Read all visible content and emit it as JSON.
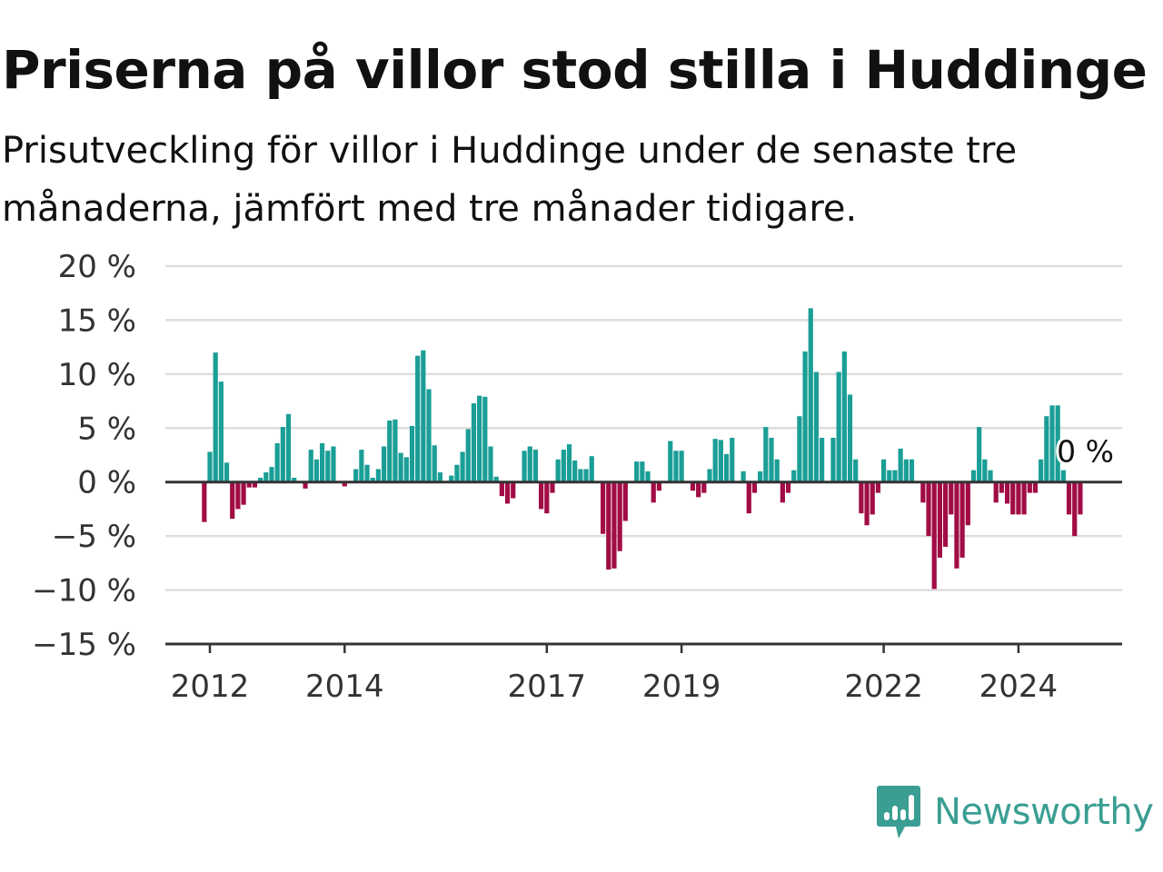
{
  "title": "Priserna på villor stod stilla i Huddinge",
  "subtitle": "Prisutveckling för villor i Huddinge under de senaste tre månaderna, jämfört med tre månader tidigare.",
  "brand": {
    "name": "Newsworthy",
    "icon": "newsworthy-bar-chart-logo-icon",
    "color": "#3a9e92"
  },
  "colors": {
    "positive": "#1a9e96",
    "negative": "#a10c45",
    "grid": "#dddddd",
    "axis": "#333333"
  },
  "chart_data": {
    "type": "bar",
    "title": "Priserna på villor stod stilla i Huddinge",
    "subtitle": "Prisutveckling för villor i Huddinge under de senaste tre månaderna, jämfört med tre månader tidigare.",
    "xlabel": "",
    "ylabel": "",
    "ylim": [
      -15,
      20
    ],
    "yticks": [
      20,
      15,
      10,
      5,
      0,
      -5,
      -10,
      -15
    ],
    "ytick_labels": [
      "20 %",
      "15 %",
      "10 %",
      "5 %",
      "0 %",
      "−5 %",
      "−10 %",
      "−15 %"
    ],
    "xticks": [
      "2012",
      "2014",
      "2017",
      "2019",
      "2022",
      "2024"
    ],
    "x_start": "2011-12",
    "x_end": "2024-10",
    "grid": true,
    "legend": "none",
    "last_value_label": "0 %",
    "series": [
      {
        "x_start": "2011-12",
        "frequency": "monthly",
        "values": [
          -3.7,
          2.8,
          12.0,
          9.3,
          1.8,
          -3.4,
          -2.5,
          -2.1,
          -0.5,
          -0.5,
          0.4,
          0.9,
          1.4,
          3.6,
          5.1,
          6.3,
          0.4,
          0.0,
          -0.6,
          3.0,
          2.1,
          3.6,
          2.9,
          3.3,
          0.0,
          -0.4,
          0.0,
          1.2,
          3.0,
          1.6,
          0.4,
          1.2,
          3.3,
          5.7,
          5.8,
          2.7,
          2.3,
          5.2,
          11.7,
          12.2,
          8.6,
          3.4,
          0.9,
          0.0,
          0.6,
          1.6,
          2.8,
          4.9,
          7.3,
          8.0,
          7.9,
          3.3,
          0.5,
          -1.3,
          -2.0,
          -1.5,
          0.0,
          2.9,
          3.3,
          3.0,
          -2.5,
          -2.9,
          -1.0,
          2.1,
          3.0,
          3.5,
          2.0,
          1.2,
          1.2,
          2.4,
          0.0,
          -4.8,
          -8.1,
          -8.0,
          -6.4,
          -3.6,
          0.0,
          1.9,
          1.9,
          1.0,
          -1.9,
          -0.8,
          0.0,
          3.8,
          2.9,
          2.9,
          0.0,
          -0.8,
          -1.4,
          -1.0,
          1.2,
          4.0,
          3.9,
          2.6,
          4.1,
          0.0,
          1.0,
          -2.9,
          -1.0,
          1.0,
          5.1,
          4.1,
          2.1,
          -1.9,
          -1.0,
          1.1,
          6.1,
          12.1,
          16.1,
          10.2,
          4.1,
          0.0,
          4.1,
          10.2,
          12.1,
          8.1,
          2.1,
          -2.9,
          -4.0,
          -3.0,
          -1.0,
          2.1,
          1.1,
          1.1,
          3.1,
          2.1,
          2.1,
          0.0,
          -1.9,
          -5.0,
          -9.9,
          -7.0,
          -6.0,
          -3.0,
          -8.0,
          -7.0,
          -4.0,
          1.1,
          5.1,
          2.1,
          1.1,
          -1.9,
          -1.0,
          -2.0,
          -3.0,
          -3.0,
          -3.0,
          -1.0,
          -1.0,
          2.1,
          6.1,
          7.1,
          7.1,
          1.1,
          -3.0,
          -5.0,
          -3.0,
          0.0
        ]
      }
    ]
  }
}
